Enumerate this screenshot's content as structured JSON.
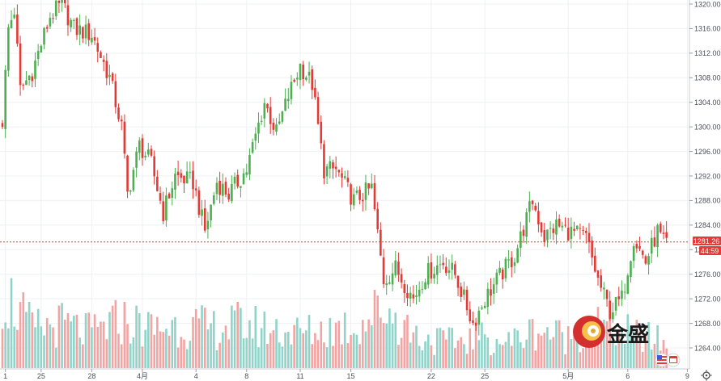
{
  "chart_data": {
    "type": "candlestick",
    "title": "",
    "xlabel": "",
    "ylabel": "",
    "ylim": [
      1262,
      1321
    ],
    "y_ticks": [
      "1264.00",
      "1268.00",
      "1272.00",
      "1276.00",
      "1280.00",
      "1284.00",
      "1288.00",
      "1292.00",
      "1296.00",
      "1300.00",
      "1304.00",
      "1308.00",
      "1312.00",
      "1316.00",
      "1320.00"
    ],
    "x_ticks": [
      {
        "label": "1",
        "index": 1
      },
      {
        "label": "25",
        "index": 13
      },
      {
        "label": "28",
        "index": 30
      },
      {
        "label": "4月",
        "index": 47
      },
      {
        "label": "4",
        "index": 65
      },
      {
        "label": "8",
        "index": 82
      },
      {
        "label": "11",
        "index": 100
      },
      {
        "label": "15",
        "index": 117
      },
      {
        "label": "22",
        "index": 144
      },
      {
        "label": "25",
        "index": 162
      },
      {
        "label": "5月",
        "index": 190
      },
      {
        "label": "6",
        "index": 210
      },
      {
        "label": "9",
        "index": 230
      }
    ],
    "current_price": {
      "label": "1281.26",
      "value": 1281.26,
      "countdown": "44:59"
    },
    "colors": {
      "up": "#4caf50",
      "down": "#e53935",
      "vol_up": "#8fd3c9",
      "vol_down": "#f4a3a3",
      "price_line": "#e53935",
      "grid": "#eef0f3"
    },
    "anchors": [
      {
        "i": 0,
        "v": 1301
      },
      {
        "i": 2,
        "v": 1316
      },
      {
        "i": 4,
        "v": 1319
      },
      {
        "i": 6,
        "v": 1306
      },
      {
        "i": 10,
        "v": 1309
      },
      {
        "i": 16,
        "v": 1318
      },
      {
        "i": 20,
        "v": 1320
      },
      {
        "i": 24,
        "v": 1316
      },
      {
        "i": 30,
        "v": 1315
      },
      {
        "i": 36,
        "v": 1308
      },
      {
        "i": 40,
        "v": 1300
      },
      {
        "i": 42,
        "v": 1289
      },
      {
        "i": 46,
        "v": 1297
      },
      {
        "i": 50,
        "v": 1294
      },
      {
        "i": 54,
        "v": 1286
      },
      {
        "i": 58,
        "v": 1292
      },
      {
        "i": 64,
        "v": 1291
      },
      {
        "i": 68,
        "v": 1283
      },
      {
        "i": 72,
        "v": 1291
      },
      {
        "i": 76,
        "v": 1289
      },
      {
        "i": 82,
        "v": 1293
      },
      {
        "i": 88,
        "v": 1304
      },
      {
        "i": 92,
        "v": 1299
      },
      {
        "i": 96,
        "v": 1305
      },
      {
        "i": 100,
        "v": 1310
      },
      {
        "i": 104,
        "v": 1307
      },
      {
        "i": 108,
        "v": 1293
      },
      {
        "i": 112,
        "v": 1293
      },
      {
        "i": 118,
        "v": 1288
      },
      {
        "i": 124,
        "v": 1290
      },
      {
        "i": 128,
        "v": 1275
      },
      {
        "i": 132,
        "v": 1277
      },
      {
        "i": 138,
        "v": 1272
      },
      {
        "i": 142,
        "v": 1276
      },
      {
        "i": 148,
        "v": 1278
      },
      {
        "i": 152,
        "v": 1276
      },
      {
        "i": 158,
        "v": 1268
      },
      {
        "i": 162,
        "v": 1272
      },
      {
        "i": 166,
        "v": 1275
      },
      {
        "i": 172,
        "v": 1279
      },
      {
        "i": 178,
        "v": 1288
      },
      {
        "i": 182,
        "v": 1282
      },
      {
        "i": 186,
        "v": 1284
      },
      {
        "i": 190,
        "v": 1283
      },
      {
        "i": 196,
        "v": 1282
      },
      {
        "i": 200,
        "v": 1275
      },
      {
        "i": 204,
        "v": 1270
      },
      {
        "i": 208,
        "v": 1272
      },
      {
        "i": 212,
        "v": 1282
      },
      {
        "i": 216,
        "v": 1278
      },
      {
        "i": 220,
        "v": 1283
      },
      {
        "i": 222,
        "v": 1281
      }
    ],
    "volume_anchors": [
      {
        "i": 0,
        "v": 0.9
      },
      {
        "i": 10,
        "v": 0.45
      },
      {
        "i": 20,
        "v": 0.5
      },
      {
        "i": 30,
        "v": 0.4
      },
      {
        "i": 40,
        "v": 0.55
      },
      {
        "i": 50,
        "v": 0.45
      },
      {
        "i": 60,
        "v": 0.5
      },
      {
        "i": 70,
        "v": 0.45
      },
      {
        "i": 80,
        "v": 0.5
      },
      {
        "i": 90,
        "v": 0.45
      },
      {
        "i": 100,
        "v": 0.4
      },
      {
        "i": 110,
        "v": 0.45
      },
      {
        "i": 120,
        "v": 0.5
      },
      {
        "i": 128,
        "v": 0.7
      },
      {
        "i": 140,
        "v": 0.35
      },
      {
        "i": 150,
        "v": 0.3
      },
      {
        "i": 160,
        "v": 0.35
      },
      {
        "i": 170,
        "v": 0.3
      },
      {
        "i": 180,
        "v": 0.45
      },
      {
        "i": 190,
        "v": 0.35
      },
      {
        "i": 200,
        "v": 0.5
      },
      {
        "i": 210,
        "v": 0.4
      },
      {
        "i": 222,
        "v": 0.3
      }
    ]
  },
  "watermark": {
    "text": "金盛"
  },
  "icons": {
    "flag": "us-flag-icon",
    "event": "calendar-event-icon",
    "settings": "gear-icon"
  }
}
